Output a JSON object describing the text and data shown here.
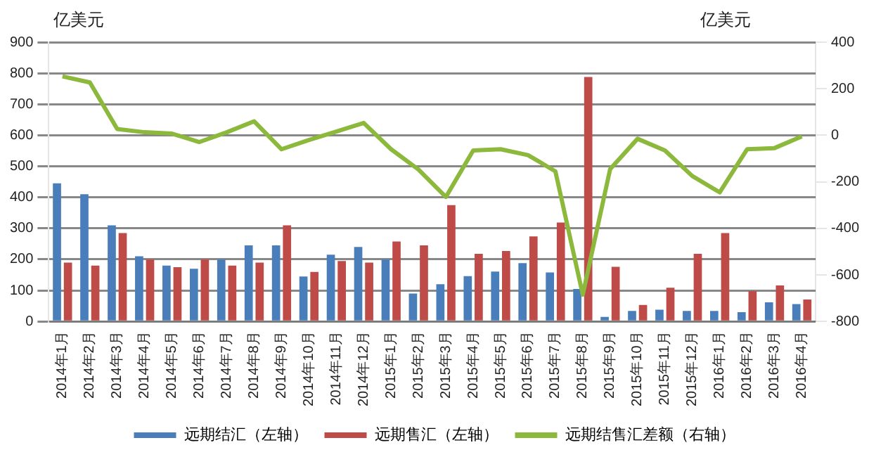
{
  "chart_data": {
    "type": "bar",
    "categories": [
      "2014年1月",
      "2014年2月",
      "2014年3月",
      "2014年4月",
      "2014年5月",
      "2014年6月",
      "2014年7月",
      "2014年8月",
      "2014年9月",
      "2014年10月",
      "2014年11月",
      "2014年12月",
      "2015年1月",
      "2015年2月",
      "2015年3月",
      "2015年4月",
      "2015年5月",
      "2015年6月",
      "2015年7月",
      "2015年8月",
      "2015年9月",
      "2015年10月",
      "2015年11月",
      "2015年12月",
      "2016年1月",
      "2016年2月",
      "2016年3月",
      "2016年4月"
    ],
    "series": [
      {
        "name": "远期结汇（左轴）",
        "color": "#4a7ebb",
        "values": [
          445,
          410,
          310,
          210,
          180,
          170,
          200,
          245,
          245,
          145,
          215,
          240,
          200,
          90,
          120,
          146,
          161,
          188,
          158,
          105,
          15,
          34,
          38,
          34,
          34,
          30,
          62,
          56
        ]
      },
      {
        "name": "远期售汇（左轴）",
        "color": "#be4b48",
        "values": [
          190,
          180,
          285,
          200,
          175,
          200,
          180,
          190,
          310,
          160,
          195,
          190,
          258,
          245,
          375,
          218,
          227,
          274,
          319,
          788,
          176,
          53,
          109,
          218,
          285,
          98,
          116,
          71
        ]
      },
      {
        "name": "远期结售汇差额（右轴）",
        "type": "line",
        "axis": "y2",
        "color": "#8cb83c",
        "values": [
          253,
          227,
          27,
          13,
          7,
          -29,
          13,
          60,
          -60,
          -20,
          16,
          53,
          -60,
          -147,
          -265,
          -65,
          -60,
          -85,
          -155,
          -685,
          -145,
          -15,
          -65,
          -175,
          -245,
          -60,
          -55,
          -5
        ]
      }
    ],
    "ylim": [
      0,
      900
    ],
    "yticks": [
      0,
      100,
      200,
      300,
      400,
      500,
      600,
      700,
      800,
      900
    ],
    "y2lim": [
      -800,
      400
    ],
    "y2ticks": [
      -800,
      -600,
      -400,
      -200,
      0,
      200,
      400
    ],
    "annotations": [
      "亿美元",
      "亿美元"
    ],
    "grid": "y",
    "legend": "bottom",
    "marker": "none"
  }
}
